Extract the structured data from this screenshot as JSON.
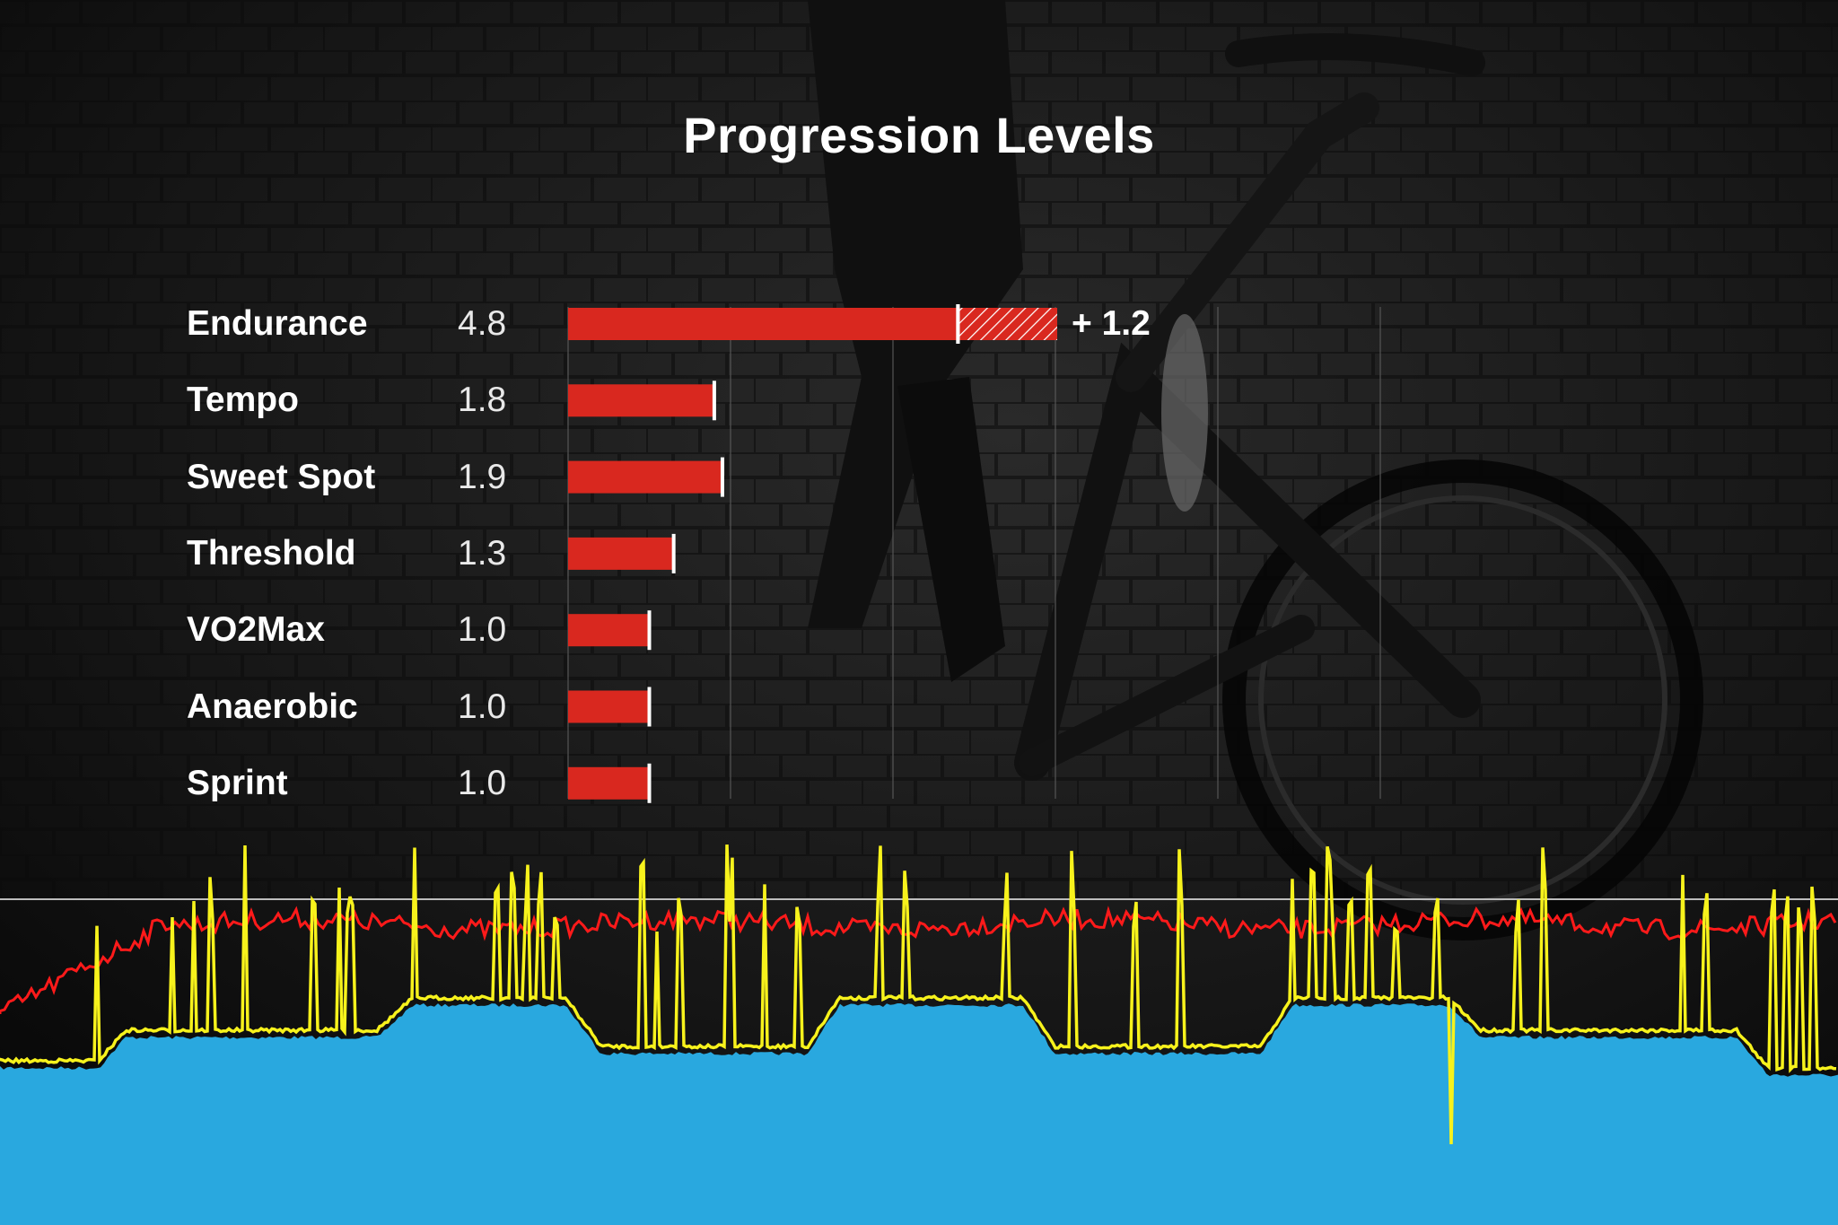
{
  "chart_data": {
    "type": "bar",
    "orientation": "horizontal",
    "title": "Progression Levels",
    "categories": [
      "Endurance",
      "Tempo",
      "Sweet Spot",
      "Threshold",
      "VO2Max",
      "Anaerobic",
      "Sprint"
    ],
    "values": [
      4.8,
      1.8,
      1.9,
      1.3,
      1.0,
      1.0,
      1.0
    ],
    "value_labels": [
      "4.8",
      "1.8",
      "1.9",
      "1.3",
      "1.0",
      "1.0",
      "1.0"
    ],
    "increase": {
      "category": "Endurance",
      "amount": 1.2,
      "label": "+ 1.2"
    },
    "xlim": [
      0,
      10
    ],
    "grid": true,
    "colors": {
      "bar": "#d9281f",
      "marker": "#ffffff",
      "power_area": "#29a8df",
      "target_line": "#f7f21c",
      "heart_rate_line": "#ff1a1a"
    }
  }
}
